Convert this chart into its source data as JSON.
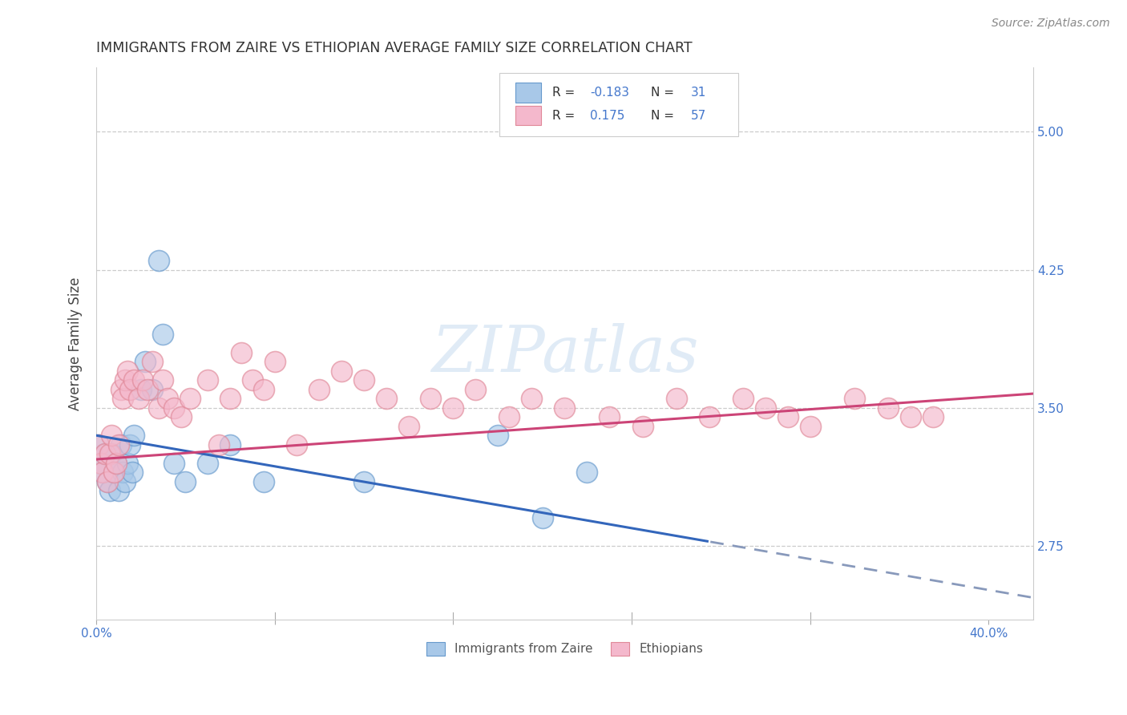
{
  "title": "IMMIGRANTS FROM ZAIRE VS ETHIOPIAN AVERAGE FAMILY SIZE CORRELATION CHART",
  "source": "Source: ZipAtlas.com",
  "ylabel": "Average Family Size",
  "xlim": [
    0.0,
    0.42
  ],
  "ylim": [
    2.35,
    5.35
  ],
  "xtick_vals": [
    0.0,
    0.08,
    0.16,
    0.24,
    0.32,
    0.4
  ],
  "yticks_right": [
    2.75,
    3.5,
    4.25,
    5.0
  ],
  "zaire_color": "#A8C8E8",
  "zaire_edge": "#6699CC",
  "ethiopian_color": "#F4B8CC",
  "ethiopian_edge": "#E08898",
  "blue_line_color": "#3366BB",
  "pink_line_color": "#CC4477",
  "watermark": "ZIPatlas",
  "legend_label1": "Immigrants from Zaire",
  "legend_label2": "Ethiopians",
  "zaire_R": -0.183,
  "zaire_N": 31,
  "ethiopian_R": 0.175,
  "ethiopian_N": 57,
  "zaire_x": [
    0.001,
    0.002,
    0.003,
    0.004,
    0.005,
    0.006,
    0.007,
    0.008,
    0.009,
    0.01,
    0.011,
    0.012,
    0.013,
    0.014,
    0.015,
    0.016,
    0.017,
    0.02,
    0.022,
    0.025,
    0.028,
    0.03,
    0.035,
    0.04,
    0.05,
    0.06,
    0.075,
    0.12,
    0.18,
    0.2,
    0.22
  ],
  "zaire_y": [
    3.3,
    3.2,
    3.15,
    3.25,
    3.1,
    3.05,
    3.25,
    3.15,
    3.2,
    3.05,
    3.3,
    3.15,
    3.1,
    3.2,
    3.3,
    3.15,
    3.35,
    3.6,
    3.75,
    3.6,
    4.3,
    3.9,
    3.2,
    3.1,
    3.2,
    3.3,
    3.1,
    3.1,
    3.35,
    2.9,
    3.15
  ],
  "ethiopian_x": [
    0.001,
    0.002,
    0.003,
    0.004,
    0.005,
    0.006,
    0.007,
    0.008,
    0.009,
    0.01,
    0.011,
    0.012,
    0.013,
    0.014,
    0.015,
    0.017,
    0.019,
    0.021,
    0.023,
    0.025,
    0.028,
    0.03,
    0.032,
    0.035,
    0.038,
    0.042,
    0.05,
    0.055,
    0.06,
    0.065,
    0.07,
    0.075,
    0.08,
    0.09,
    0.1,
    0.11,
    0.12,
    0.13,
    0.14,
    0.15,
    0.16,
    0.17,
    0.185,
    0.195,
    0.21,
    0.23,
    0.245,
    0.26,
    0.275,
    0.29,
    0.3,
    0.31,
    0.32,
    0.34,
    0.355,
    0.365,
    0.375
  ],
  "ethiopian_y": [
    3.3,
    3.2,
    3.15,
    3.25,
    3.1,
    3.25,
    3.35,
    3.15,
    3.2,
    3.3,
    3.6,
    3.55,
    3.65,
    3.7,
    3.6,
    3.65,
    3.55,
    3.65,
    3.6,
    3.75,
    3.5,
    3.65,
    3.55,
    3.5,
    3.45,
    3.55,
    3.65,
    3.3,
    3.55,
    3.8,
    3.65,
    3.6,
    3.75,
    3.3,
    3.6,
    3.7,
    3.65,
    3.55,
    3.4,
    3.55,
    3.5,
    3.6,
    3.45,
    3.55,
    3.5,
    3.45,
    3.4,
    3.55,
    3.45,
    3.55,
    3.5,
    3.45,
    3.4,
    3.55,
    3.5,
    3.45,
    3.45
  ]
}
